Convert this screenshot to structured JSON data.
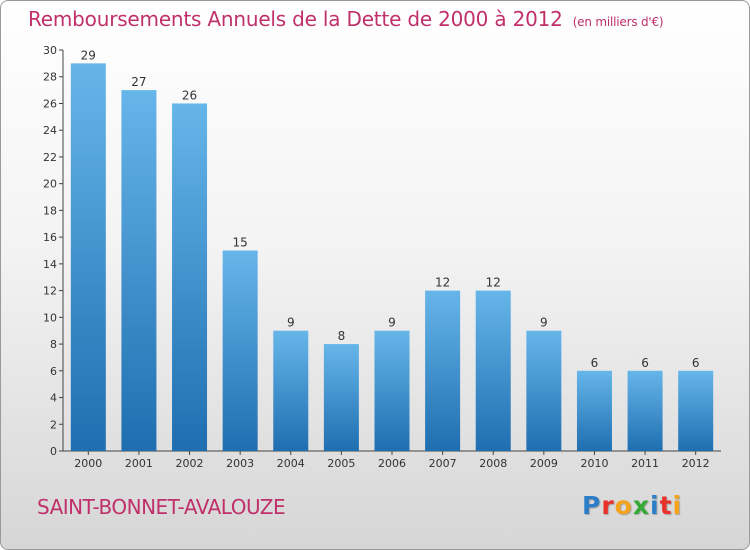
{
  "header": {
    "title": "Remboursements Annuels de la Dette de 2000 à 2012",
    "unit": "(en milliers d'€)"
  },
  "footer": {
    "commune": "SAINT-BONNET-AVALOUZE",
    "logo_letters": [
      "P",
      "r",
      "o",
      "x",
      "i",
      "t",
      "i"
    ],
    "logo_colors": [
      "#2c7fc6",
      "#e7332b",
      "#f4a41c",
      "#35a935",
      "#2c7fc6",
      "#e7332b",
      "#f4a41c"
    ]
  },
  "chart_data": {
    "type": "bar",
    "title": "Remboursements Annuels de la Dette de 2000 à 2012",
    "categories": [
      "2000",
      "2001",
      "2002",
      "2003",
      "2004",
      "2005",
      "2006",
      "2007",
      "2008",
      "2009",
      "2010",
      "2011",
      "2012"
    ],
    "values": [
      29,
      27,
      26,
      15,
      9,
      8,
      9,
      12,
      12,
      9,
      6,
      6,
      6
    ],
    "ylim": [
      0,
      30
    ],
    "yticks": [
      0,
      2,
      4,
      6,
      8,
      10,
      12,
      14,
      16,
      18,
      20,
      22,
      24,
      26,
      28,
      30
    ],
    "grid": false,
    "bar_color_light": "#66b6ea",
    "bar_color_dark": "#1f6eb0"
  }
}
